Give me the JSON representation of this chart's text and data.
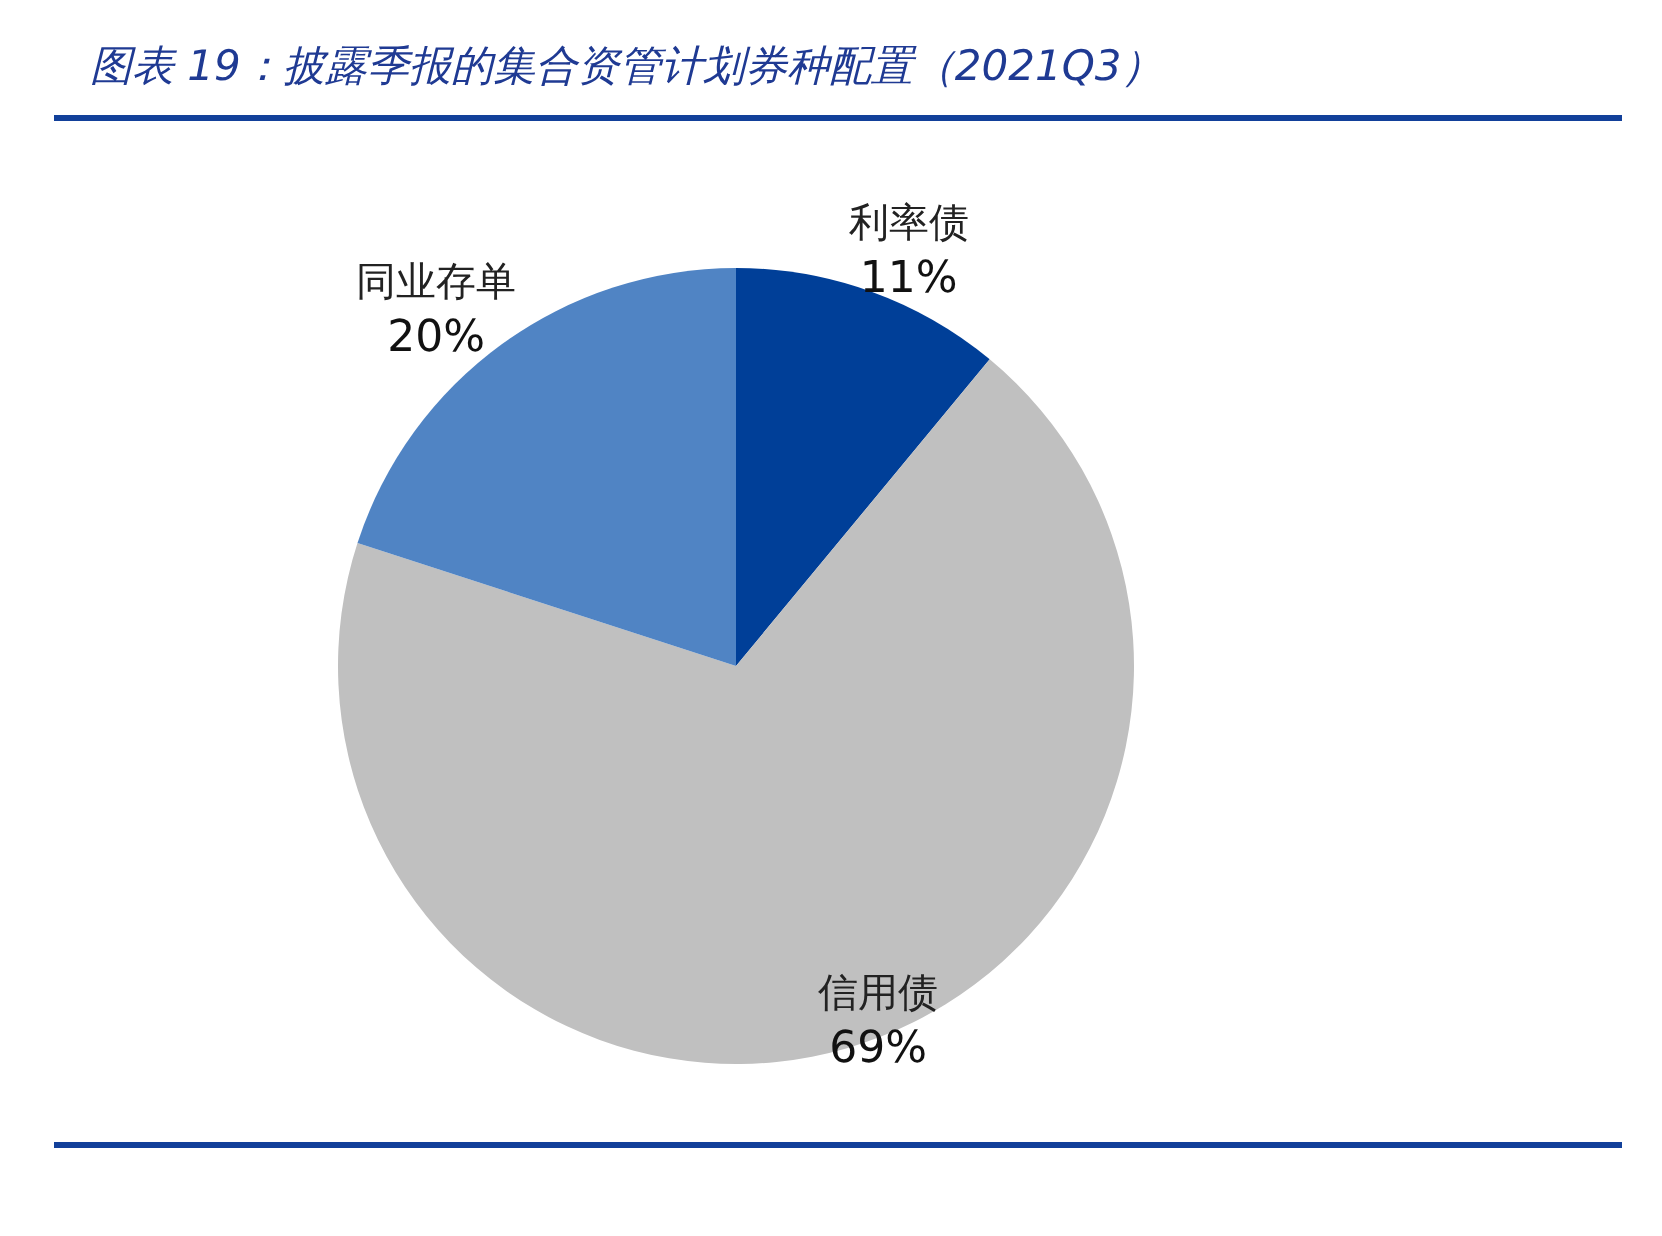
{
  "chart_data": {
    "type": "pie",
    "title": "图表 19：披露季报的集合资管计划券种配置（2021Q3）",
    "categories": [
      "利率债",
      "信用债",
      "同业存单"
    ],
    "values": [
      11,
      69,
      20
    ],
    "colors": [
      "#003f98",
      "#c0c0c0",
      "#5084c4"
    ],
    "value_labels": [
      "11%",
      "69%",
      "20%"
    ]
  }
}
